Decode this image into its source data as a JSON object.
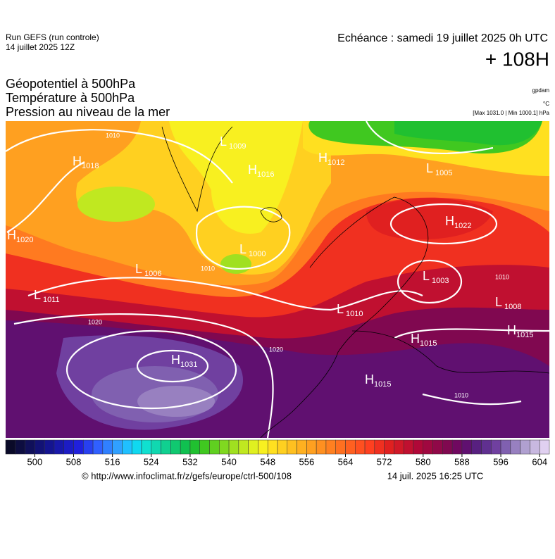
{
  "header": {
    "run": "Run GEFS (run controle)",
    "run_date": "14 juillet 2025 12Z",
    "valid": "Echéance : samedi 19 juillet 2025 0h UTC",
    "lead": "+ 108H",
    "fields": [
      "Géopotentiel à 500hPa",
      "Température à 500hPa",
      "Pression au niveau de la mer"
    ],
    "units": [
      "gpdam",
      "°C",
      "[Max 1031.0 | Min 1000.1] hPa"
    ]
  },
  "map": {
    "centers": [
      {
        "type": "H",
        "value": 1018
      },
      {
        "type": "L",
        "value": 1009
      },
      {
        "type": "H",
        "value": 1016
      },
      {
        "type": "H",
        "value": 1012
      },
      {
        "type": "L",
        "value": 1005
      },
      {
        "type": "H",
        "value": 1020
      },
      {
        "type": "L",
        "value": 1000
      },
      {
        "type": "L",
        "value": 1006
      },
      {
        "type": "L",
        "value": 1011
      },
      {
        "type": "H",
        "value": 1022
      },
      {
        "type": "L",
        "value": 1003
      },
      {
        "type": "L",
        "value": 1010
      },
      {
        "type": "L",
        "value": 1008
      },
      {
        "type": "H",
        "value": 1015
      },
      {
        "type": "H",
        "value": 1015
      },
      {
        "type": "H",
        "value": 1031
      },
      {
        "type": "H",
        "value": 1015
      }
    ],
    "isobar_labels": [
      1010,
      1020,
      1020,
      1010,
      1010,
      1010
    ]
  },
  "colorbar": {
    "xlim": [
      494,
      606
    ],
    "xticks": [
      500,
      508,
      516,
      524,
      532,
      540,
      548,
      556,
      564,
      572,
      580,
      588,
      596,
      604
    ],
    "colors": [
      "#0a0a28",
      "#0d0d40",
      "#10105a",
      "#121275",
      "#141490",
      "#1818aa",
      "#1c1cc4",
      "#2020dc",
      "#2840f0",
      "#3060ff",
      "#3080ff",
      "#30a0ff",
      "#20c0ff",
      "#10d8f0",
      "#10e0d0",
      "#10d8b0",
      "#10d090",
      "#10c870",
      "#10c050",
      "#20c030",
      "#40c820",
      "#60d020",
      "#80d820",
      "#a0e020",
      "#c0e820",
      "#e0f020",
      "#f8f020",
      "#ffe020",
      "#ffd020",
      "#ffc020",
      "#ffb020",
      "#ffa020",
      "#ff9020",
      "#ff8020",
      "#ff7020",
      "#ff6020",
      "#ff5020",
      "#ff4020",
      "#f03020",
      "#e02020",
      "#d01828",
      "#c01030",
      "#b00838",
      "#a00840",
      "#900848",
      "#800850",
      "#700860",
      "#601070",
      "#582080",
      "#603090",
      "#7040a0",
      "#8060b0",
      "#9880c0",
      "#b0a0d0",
      "#c8b8e0",
      "#e0d0f0"
    ]
  },
  "footer": {
    "url": "© http://www.infoclimat.fr/z/gefs/europe/ctrl-500/108",
    "timestamp": "14 juil. 2025 16:25 UTC"
  }
}
